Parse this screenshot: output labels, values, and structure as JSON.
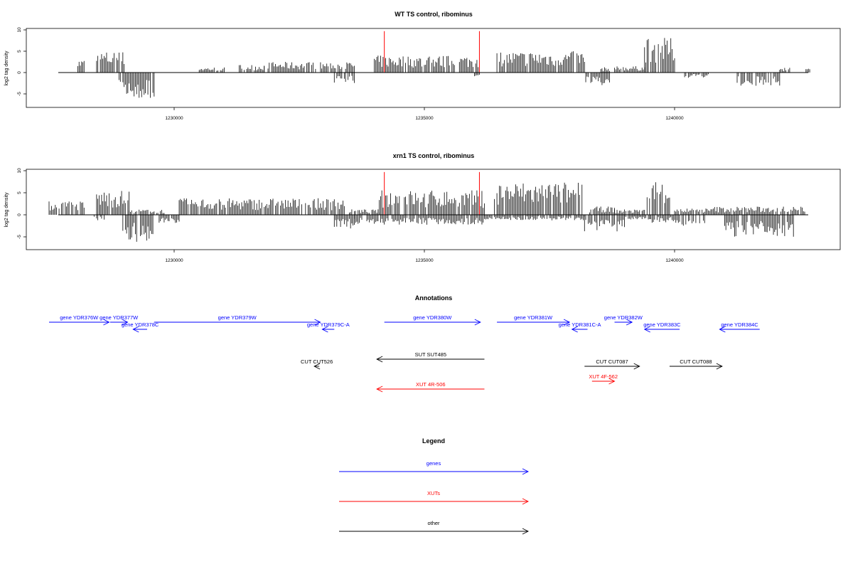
{
  "colors": {
    "gene": "#0000ff",
    "xut": "#ff0000",
    "other": "#000000",
    "bars": "#000000"
  },
  "chart_data": [
    {
      "type": "bar",
      "title": "WT TS control, ribominus",
      "ylabel": "log2 tag density",
      "xlim": [
        1227500,
        1243000
      ],
      "ylim": [
        -8,
        10
      ],
      "xticks": [
        1230000,
        1235000,
        1240000
      ],
      "yticks": [
        10,
        5,
        0,
        -5
      ],
      "markers": [
        1234200,
        1236100
      ],
      "profile_pos": [
        [
          1228050,
          1228200,
          2.5
        ],
        [
          1228450,
          1229000,
          4.0
        ],
        [
          1230500,
          1231000,
          1.0
        ],
        [
          1231300,
          1231800,
          1.5
        ],
        [
          1231800,
          1233600,
          2.0
        ],
        [
          1234000,
          1236100,
          3.2
        ],
        [
          1236450,
          1238200,
          4.0
        ],
        [
          1238500,
          1238700,
          1.0
        ],
        [
          1238800,
          1239400,
          1.2
        ],
        [
          1239400,
          1240000,
          6.5
        ],
        [
          1242100,
          1242300,
          1.0
        ],
        [
          1242600,
          1242700,
          0.8
        ]
      ],
      "profile_neg": [
        [
          1228900,
          1229600,
          -5.0
        ],
        [
          1233200,
          1233600,
          -2.0
        ],
        [
          1236000,
          1236100,
          -1.0
        ],
        [
          1238200,
          1238700,
          -2.5
        ],
        [
          1240200,
          1240700,
          -1.0
        ],
        [
          1241200,
          1242100,
          -2.5
        ]
      ]
    },
    {
      "type": "bar",
      "title": "xrn1 TS control, ribominus",
      "ylabel": "log2 tag density",
      "xlim": [
        1227500,
        1243000
      ],
      "ylim": [
        -8,
        10
      ],
      "xticks": [
        1230000,
        1235000,
        1240000
      ],
      "yticks": [
        10,
        5,
        0,
        -5
      ],
      "markers": [
        1234200,
        1236100
      ],
      "profile_pos": [
        [
          1227500,
          1228200,
          2.5
        ],
        [
          1228450,
          1229100,
          4.5
        ],
        [
          1229100,
          1229800,
          1.0
        ],
        [
          1230100,
          1233400,
          3.0
        ],
        [
          1233500,
          1234100,
          1.0
        ],
        [
          1234100,
          1236200,
          4.5
        ],
        [
          1236400,
          1238200,
          6.0
        ],
        [
          1238300,
          1238800,
          1.5
        ],
        [
          1238800,
          1239400,
          1.0
        ],
        [
          1239400,
          1239900,
          6.5
        ],
        [
          1240000,
          1240800,
          1.2
        ],
        [
          1240800,
          1242600,
          1.5
        ]
      ],
      "profile_neg": [
        [
          1228400,
          1228600,
          -1.0
        ],
        [
          1228900,
          1229600,
          -5.0
        ],
        [
          1229700,
          1230100,
          -1.5
        ],
        [
          1233200,
          1233600,
          -2.5
        ],
        [
          1233600,
          1236200,
          -1.8
        ],
        [
          1236200,
          1238200,
          -1.0
        ],
        [
          1238200,
          1239000,
          -3.0
        ],
        [
          1239000,
          1239500,
          -1.0
        ],
        [
          1239500,
          1240100,
          -1.5
        ],
        [
          1240100,
          1240600,
          -2.0
        ],
        [
          1241000,
          1242400,
          -4.0
        ]
      ]
    }
  ],
  "annotations": {
    "title": "Annotations",
    "features": [
      {
        "label": "gene YDR376W",
        "start": 1227500,
        "end": 1228700,
        "strand": "+",
        "kind": "gene",
        "row": 0
      },
      {
        "label": "gene YDR377W",
        "start": 1228720,
        "end": 1229070,
        "strand": "+",
        "kind": "gene",
        "row": 0
      },
      {
        "label": "gene YDR378C",
        "start": 1229180,
        "end": 1229460,
        "strand": "-",
        "kind": "gene",
        "row": 1
      },
      {
        "label": "gene YDR379W",
        "start": 1229600,
        "end": 1232920,
        "strand": "+",
        "kind": "gene",
        "row": 0
      },
      {
        "label": "gene YDR379C-A",
        "start": 1232960,
        "end": 1233200,
        "strand": "-",
        "kind": "gene",
        "row": 1
      },
      {
        "label": "gene YDR380W",
        "start": 1234200,
        "end": 1236120,
        "strand": "+",
        "kind": "gene",
        "row": 0
      },
      {
        "label": "gene YDR381W",
        "start": 1236450,
        "end": 1237900,
        "strand": "+",
        "kind": "gene",
        "row": 0
      },
      {
        "label": "gene YDR381C-A",
        "start": 1237950,
        "end": 1238260,
        "strand": "-",
        "kind": "gene",
        "row": 1
      },
      {
        "label": "gene YDR382W",
        "start": 1238800,
        "end": 1239150,
        "strand": "+",
        "kind": "gene",
        "row": 0
      },
      {
        "label": "gene YDR383C",
        "start": 1239400,
        "end": 1240100,
        "strand": "-",
        "kind": "gene",
        "row": 1
      },
      {
        "label": "gene YDR384C",
        "start": 1240900,
        "end": 1241700,
        "strand": "-",
        "kind": "gene",
        "row": 1
      },
      {
        "label": "SUT SUT485",
        "start": 1234050,
        "end": 1236200,
        "strand": "-",
        "kind": "other",
        "row": 2
      },
      {
        "label": "CUT CUT526",
        "start": 1232800,
        "end": 1232900,
        "strand": "-",
        "kind": "other",
        "row": 3
      },
      {
        "label": "CUT CUT087",
        "start": 1238200,
        "end": 1239300,
        "strand": "+",
        "kind": "other",
        "row": 3
      },
      {
        "label": "CUT CUT088",
        "start": 1239900,
        "end": 1240950,
        "strand": "+",
        "kind": "other",
        "row": 3
      },
      {
        "label": "XUT 4R-506",
        "start": 1234050,
        "end": 1236200,
        "strand": "-",
        "kind": "xut",
        "row": 4
      },
      {
        "label": "XUT 4F-562",
        "start": 1238350,
        "end": 1238800,
        "strand": "+",
        "kind": "xut",
        "row": 5
      }
    ]
  },
  "legend": {
    "title": "Legend",
    "items": [
      {
        "label": "genes",
        "kind": "gene"
      },
      {
        "label": "XUTs",
        "kind": "xut"
      },
      {
        "label": "other",
        "kind": "other"
      }
    ]
  }
}
